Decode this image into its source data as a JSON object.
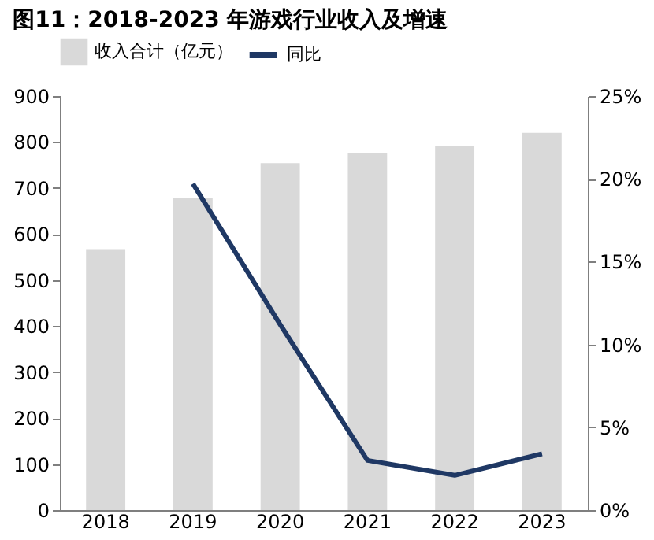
{
  "chart_data": {
    "type": "bar",
    "title": "图11：2018-2023 年游戏行业收入及增速",
    "categories": [
      "2018",
      "2019",
      "2020",
      "2021",
      "2022",
      "2023"
    ],
    "series": [
      {
        "name": "收入合计（亿元）",
        "color": "#d9d9d9",
        "values": [
          567,
          678,
          754,
          775,
          792,
          820
        ]
      },
      {
        "name": "同比",
        "type": "line",
        "axis": "y2",
        "color": "#1f3864",
        "values": [
          null,
          19.7,
          11.2,
          3.0,
          2.1,
          3.4
        ]
      }
    ],
    "ylim": [
      0,
      900
    ],
    "yticks": [
      0,
      100,
      200,
      300,
      400,
      500,
      600,
      700,
      800,
      900
    ],
    "y2lim": [
      0,
      25
    ],
    "y2ticks": [
      {
        "value": 0,
        "label": "0%"
      },
      {
        "value": 5,
        "label": "5%"
      },
      {
        "value": 10,
        "label": "10%"
      },
      {
        "value": 15,
        "label": "15%"
      },
      {
        "value": 20,
        "label": "20%"
      },
      {
        "value": 25,
        "label": "25%"
      }
    ],
    "legend": "top",
    "grid": false,
    "marker": "none",
    "line_style": "solid"
  }
}
